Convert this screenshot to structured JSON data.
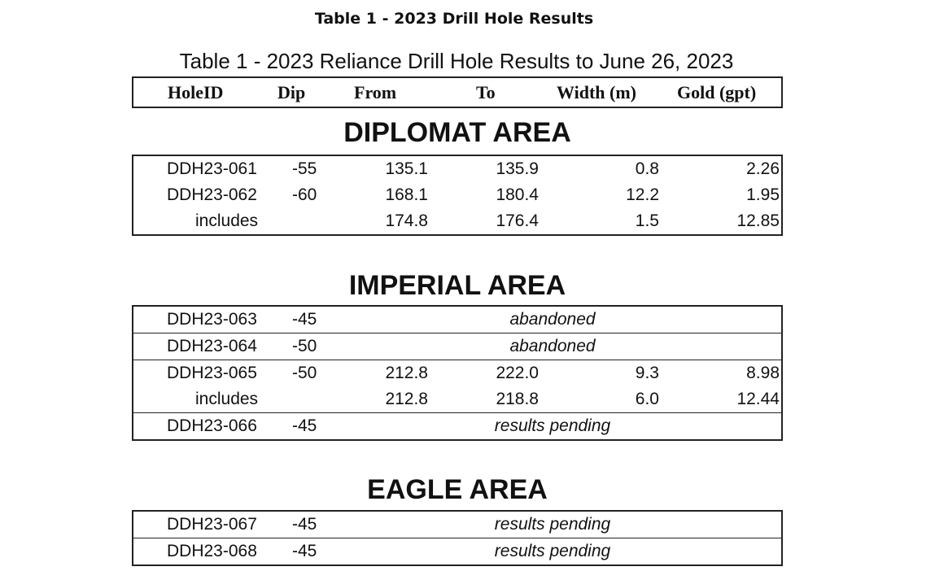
{
  "page_heading": "Table 1 - 2023 Drill Hole Results",
  "table_title": "Table 1 - 2023 Reliance Drill Hole Results to June 26, 2023",
  "columns": {
    "hole": "HoleID",
    "dip": "Dip",
    "from": "From",
    "to": "To",
    "width": "Width (m)",
    "gold": "Gold (gpt)"
  },
  "sections": [
    {
      "title": "DIPLOMAT AREA",
      "rows": [
        {
          "hole": "DDH23-061",
          "dip": "-55",
          "from": "135.1",
          "to": "135.9",
          "width": "0.8",
          "gold": "2.26"
        },
        {
          "hole": "DDH23-062",
          "dip": "-60",
          "from": "168.1",
          "to": "180.4",
          "width": "12.2",
          "gold": "1.95"
        },
        {
          "hole": "includes",
          "from": "174.8",
          "to": "176.4",
          "width": "1.5",
          "gold": "12.85"
        }
      ]
    },
    {
      "title": "IMPERIAL AREA",
      "rows": [
        {
          "hole": "DDH23-063",
          "dip": "-45",
          "note": "abandoned"
        },
        {
          "hole": "DDH23-064",
          "dip": "-50",
          "note": "abandoned"
        },
        {
          "hole": "DDH23-065",
          "dip": "-50",
          "from": "212.8",
          "to": "222.0",
          "width": "9.3",
          "gold": "8.98"
        },
        {
          "hole": "includes",
          "from": "212.8",
          "to": "218.8",
          "width": "6.0",
          "gold": "12.44"
        },
        {
          "hole": "DDH23-066",
          "dip": "-45",
          "note": "results pending"
        }
      ]
    },
    {
      "title": "EAGLE AREA",
      "rows": [
        {
          "hole": "DDH23-067",
          "dip": "-45",
          "note": "results pending"
        },
        {
          "hole": "DDH23-068",
          "dip": "-45",
          "note": "results pending"
        }
      ]
    }
  ]
}
